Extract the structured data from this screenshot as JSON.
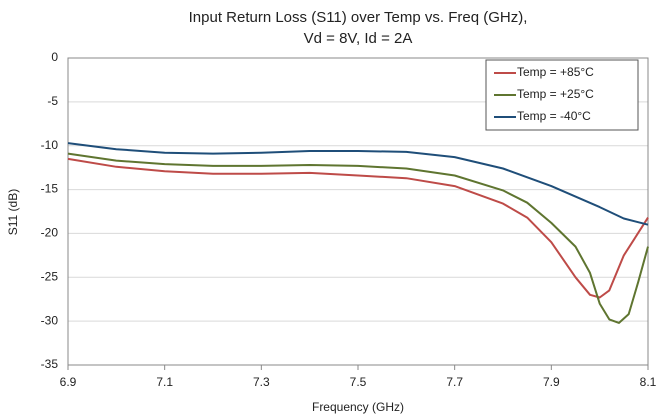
{
  "chart_data": {
    "type": "line",
    "title": "Input Return Loss (S11) over Temp vs. Freq (GHz),",
    "subtitle": "Vd = 8V, Id = 2A",
    "xlabel": "Frequency (GHz)",
    "ylabel": "S11 (dB)",
    "xlim": [
      6.9,
      8.1
    ],
    "xticks": [
      6.9,
      7.1,
      7.3,
      7.5,
      7.7,
      7.9,
      8.1
    ],
    "ylim": [
      -35,
      0
    ],
    "yticks": [
      -35,
      -30,
      -25,
      -20,
      -15,
      -10,
      -5,
      0
    ],
    "grid": true,
    "legend": "top-right",
    "series": [
      {
        "name": "Temp = +85°C",
        "color": "#be4b48",
        "x": [
          6.9,
          7.0,
          7.1,
          7.2,
          7.3,
          7.4,
          7.5,
          7.6,
          7.7,
          7.8,
          7.85,
          7.9,
          7.95,
          7.98,
          8.0,
          8.02,
          8.05,
          8.1
        ],
        "values": [
          -11.5,
          -12.4,
          -12.9,
          -13.2,
          -13.2,
          -13.1,
          -13.4,
          -13.7,
          -14.6,
          -16.6,
          -18.2,
          -21,
          -25,
          -27,
          -27.3,
          -26.5,
          -22.5,
          -18.2
        ]
      },
      {
        "name": "Temp = +25°C",
        "color": "#5f7530",
        "x": [
          6.9,
          7.0,
          7.1,
          7.2,
          7.3,
          7.4,
          7.5,
          7.6,
          7.7,
          7.8,
          7.85,
          7.9,
          7.95,
          7.98,
          8.0,
          8.02,
          8.04,
          8.06,
          8.08,
          8.1
        ],
        "values": [
          -10.9,
          -11.7,
          -12.1,
          -12.3,
          -12.3,
          -12.2,
          -12.3,
          -12.6,
          -13.4,
          -15.1,
          -16.5,
          -18.8,
          -21.5,
          -24.5,
          -28,
          -29.8,
          -30.2,
          -29.2,
          -25.5,
          -21.5
        ]
      },
      {
        "name": "Temp = -40°C",
        "color": "#1f4e79",
        "x": [
          6.9,
          7.0,
          7.1,
          7.2,
          7.3,
          7.4,
          7.5,
          7.6,
          7.7,
          7.8,
          7.9,
          8.0,
          8.05,
          8.1
        ],
        "values": [
          -9.7,
          -10.4,
          -10.8,
          -10.9,
          -10.8,
          -10.6,
          -10.6,
          -10.7,
          -11.3,
          -12.6,
          -14.6,
          -17.0,
          -18.3,
          -19.0
        ]
      }
    ]
  }
}
